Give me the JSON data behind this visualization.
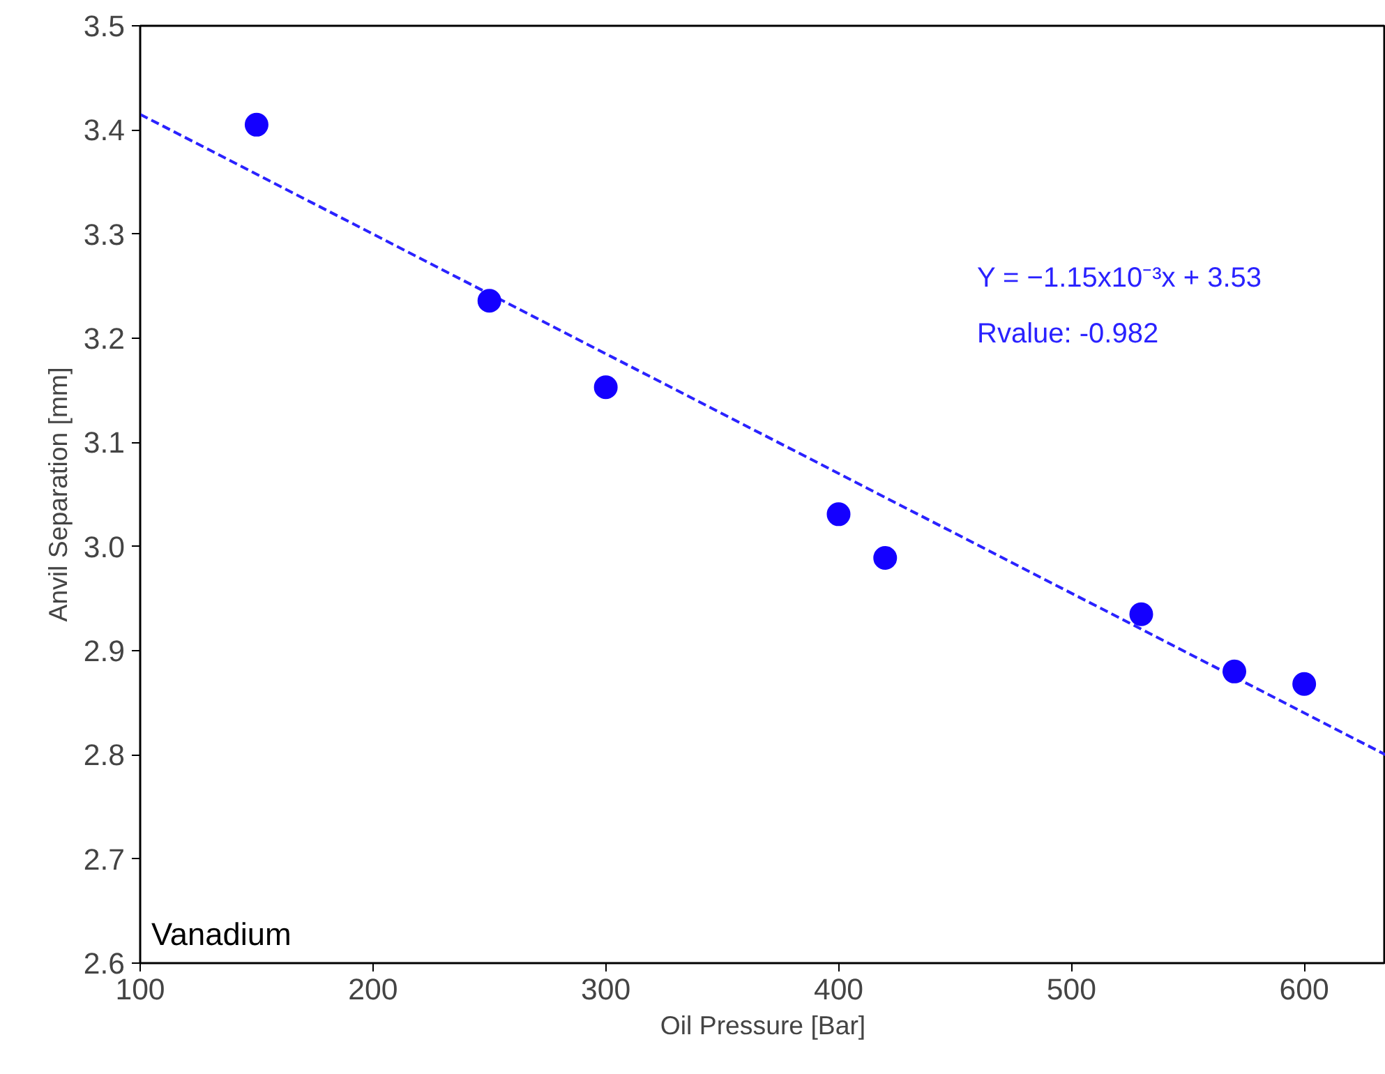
{
  "chart_data": {
    "type": "scatter",
    "xlabel": "Oil Pressure [Bar]",
    "ylabel": "Anvil Separation [mm]",
    "series": [
      {
        "type": "scatter",
        "color": "#1400ff",
        "marker": "circle",
        "x": [
          150,
          250,
          300,
          400,
          420,
          530,
          570,
          600
        ],
        "values": [
          3.405,
          3.236,
          3.153,
          3.031,
          2.989,
          2.935,
          2.88,
          2.868
        ]
      },
      {
        "type": "line",
        "color": "#2a22ff",
        "line_style": "dashed",
        "marker": "none",
        "x": [
          100,
          635
        ],
        "values": [
          3.415,
          2.8
        ]
      }
    ],
    "annotations": [
      "Y = −1.15x10⁻³x + 3.53",
      "Rvalue: -0.982",
      "Vanadium"
    ],
    "xlim": [
      100,
      635
    ],
    "ylim": [
      2.6,
      3.5
    ],
    "xticks": [
      100,
      200,
      300,
      400,
      500,
      600
    ],
    "yticks": [
      2.6,
      2.7,
      2.8,
      2.9,
      {
        "value": 3,
        "label": "3.0"
      },
      3.1,
      3.2,
      3.3,
      3.4,
      3.5
    ],
    "grid": false
  }
}
